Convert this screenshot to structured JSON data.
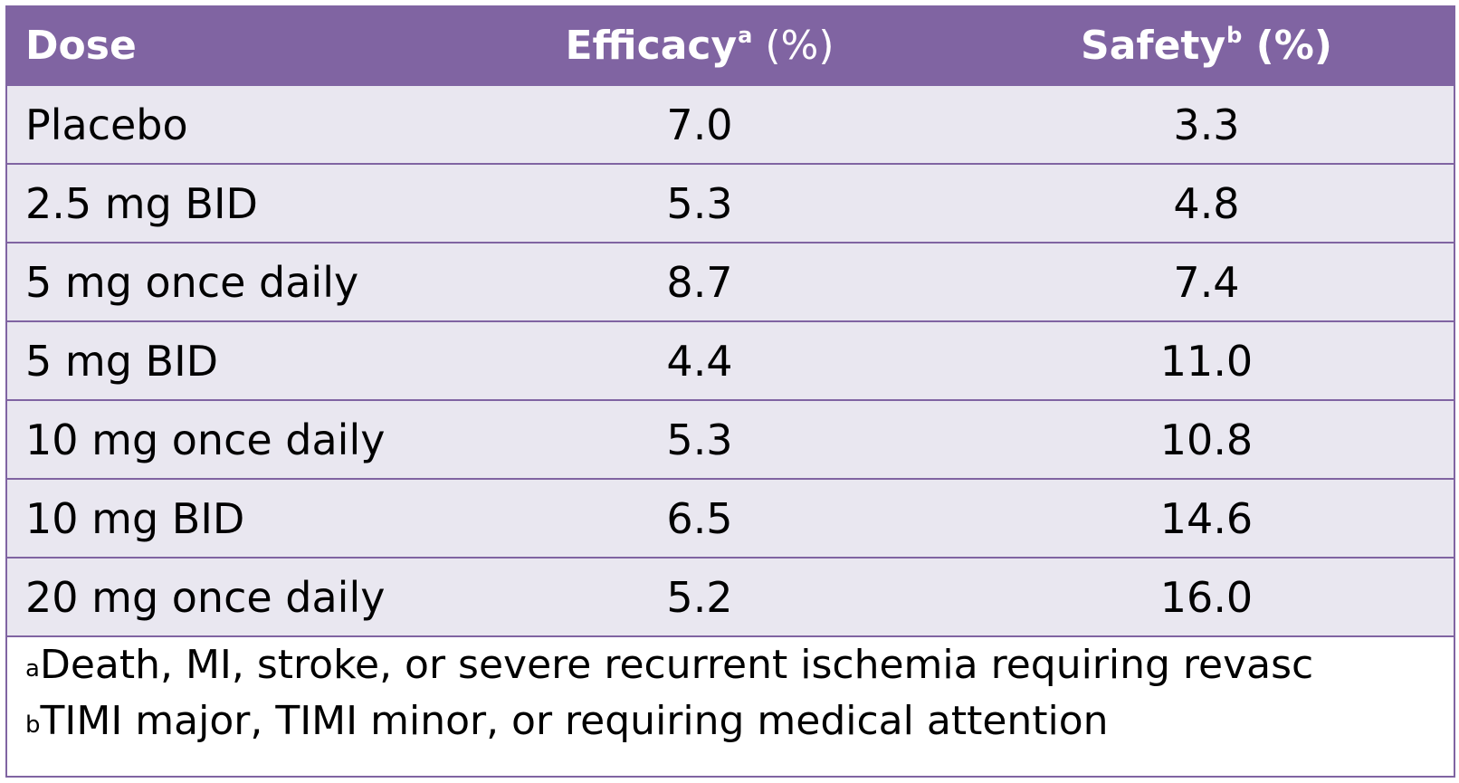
{
  "table": {
    "headers": [
      {
        "label": "Dose",
        "sup": ""
      },
      {
        "label": "Efficacy",
        "sup": "a",
        "suffix": " (%)"
      },
      {
        "label": "Safety",
        "sup": "b",
        "suffix": " (%)"
      }
    ],
    "rows": [
      {
        "dose": "Placebo",
        "efficacy": "7.0",
        "safety": "3.3"
      },
      {
        "dose": "2.5 mg BID",
        "efficacy": "5.3",
        "safety": "4.8"
      },
      {
        "dose": "5 mg once daily",
        "efficacy": "8.7",
        "safety": "7.4"
      },
      {
        "dose": "5 mg BID",
        "efficacy": "4.4",
        "safety": "11.0"
      },
      {
        "dose": "10 mg once daily",
        "efficacy": "5.3",
        "safety": "10.8"
      },
      {
        "dose": "10 mg BID",
        "efficacy": "6.5",
        "safety": "14.6"
      },
      {
        "dose": "20 mg once daily",
        "efficacy": "5.2",
        "safety": "16.0"
      }
    ]
  },
  "footnotes": [
    {
      "marker": "a",
      "text": "Death, MI, stroke, or severe recurrent ischemia requiring revasc"
    },
    {
      "marker": "b",
      "text": "TIMI major, TIMI minor, or requiring medical attention"
    }
  ],
  "colors": {
    "header_bg": "#8064a2",
    "row_bg": "#e9e7f0",
    "border": "#8064a2"
  }
}
